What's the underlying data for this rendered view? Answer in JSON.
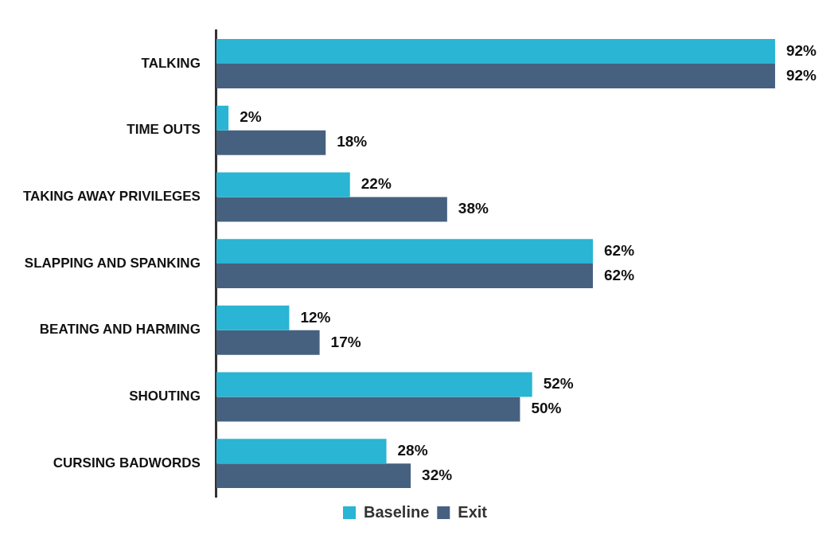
{
  "chart_data": {
    "type": "bar",
    "orientation": "horizontal",
    "categories": [
      "TALKING",
      "TIME OUTS",
      "TAKING AWAY PRIVILEGES",
      "SLAPPING AND SPANKING",
      "BEATING AND HARMING",
      "SHOUTING",
      "CURSING BADWORDS"
    ],
    "series": [
      {
        "name": "Baseline",
        "color": "#29b5d3",
        "values": [
          92,
          2,
          22,
          62,
          12,
          52,
          28
        ],
        "value_labels": [
          "92%",
          "2%",
          "22%",
          "62%",
          "12%",
          "52%",
          "28%"
        ]
      },
      {
        "name": "Exit",
        "color": "#46617f",
        "values": [
          92,
          18,
          38,
          62,
          17,
          50,
          32
        ],
        "value_labels": [
          "92%",
          "18%",
          "38%",
          "62%",
          "17%",
          "50%",
          "32%"
        ]
      }
    ],
    "tick_labels": "y",
    "grid": false,
    "legend": "bottom"
  }
}
